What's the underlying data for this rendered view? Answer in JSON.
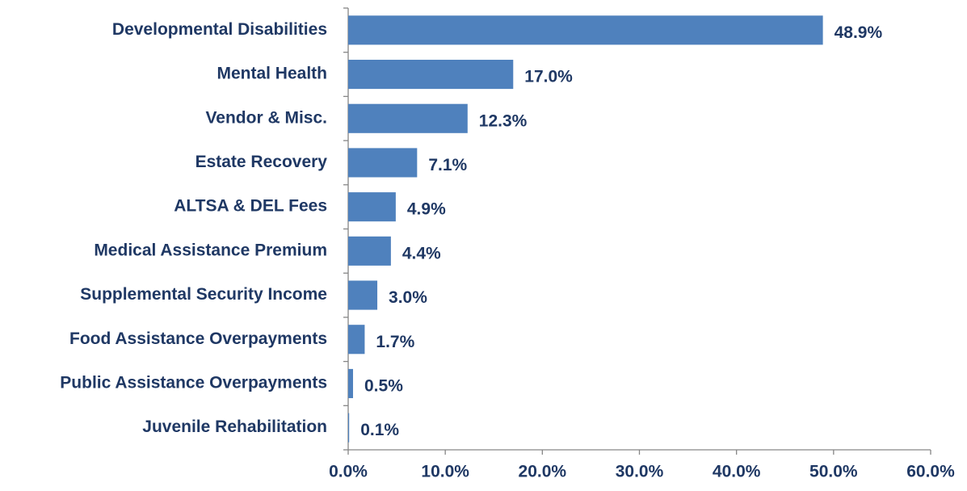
{
  "chart_data": {
    "type": "bar",
    "orientation": "horizontal",
    "categories": [
      "Developmental Disabilities",
      "Mental Health",
      "Vendor & Misc.",
      "Estate Recovery",
      "ALTSA & DEL Fees",
      "Medical Assistance Premium",
      "Supplemental Security Income",
      "Food Assistance Overpayments",
      "Public Assistance Overpayments",
      "Juvenile Rehabilitation"
    ],
    "values": [
      48.9,
      17.0,
      12.3,
      7.1,
      4.9,
      4.4,
      3.0,
      1.7,
      0.5,
      0.1
    ],
    "value_labels": [
      "48.9%",
      "17.0%",
      "12.3%",
      "7.1%",
      "4.9%",
      "4.4%",
      "3.0%",
      "1.7%",
      "0.5%",
      "0.1%"
    ],
    "color": "#4f81bd",
    "xlim": [
      0,
      60
    ],
    "xticks": [
      {
        "value": 0,
        "label": "0.0%"
      },
      {
        "value": 10,
        "label": "10.0%"
      },
      {
        "value": 20,
        "label": "20.0%"
      },
      {
        "value": 30,
        "label": "30.0%"
      },
      {
        "value": 40,
        "label": "40.0%"
      },
      {
        "value": 50,
        "label": "50.0%"
      },
      {
        "value": 60,
        "label": "60.0%"
      }
    ],
    "grid": false
  }
}
